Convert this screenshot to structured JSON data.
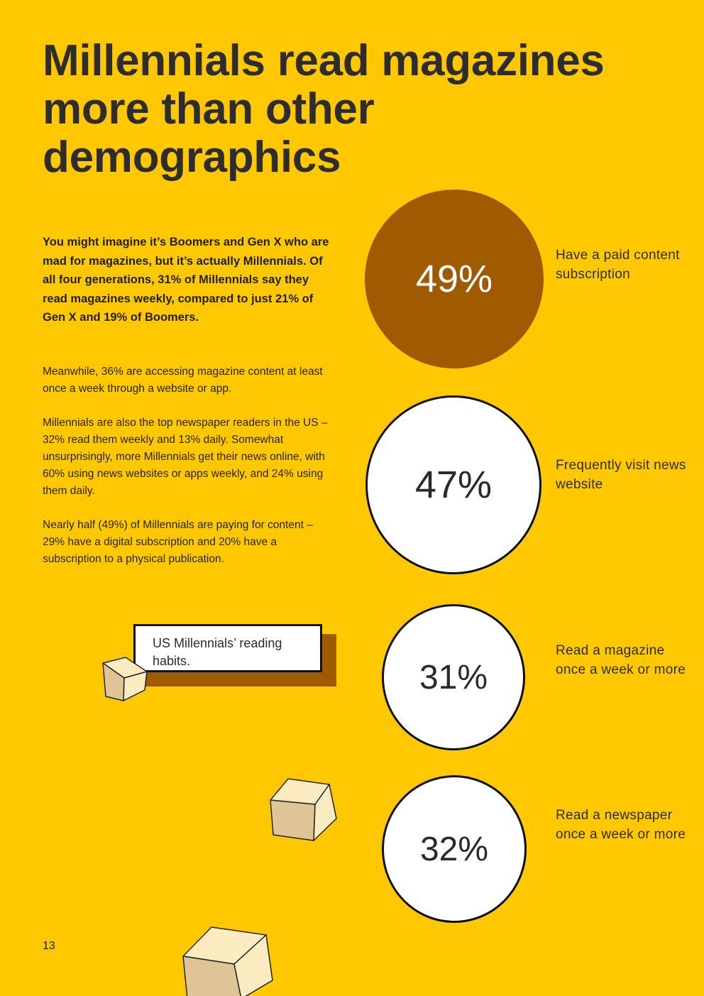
{
  "page": {
    "title": "Millennials read magazines more than other demographics",
    "intro": "You might imagine it’s Boomers and Gen X who are mad for magazines, but it’s actually Millennials. Of all four generations, 31% of Millennials say they read magazines weekly, compared to just 21% of Gen X and 19% of Boomers.",
    "paragraphs": [
      "Meanwhile, 36% are accessing magazine content at least once a week through a website or app.",
      "Millennials are also the top newspaper readers in the US – 32% read them weekly and 13% daily. Somewhat unsurprisingly, more Millennials get their news online, with 60% using news websites or apps weekly, and 24% using them daily.",
      "Nearly half (49%) of Millennials are paying for content – 29% have a digital subscription and 20% have a subscription to a physical publication."
    ],
    "callout": "US Millennials’ reading habits.",
    "page_number": "13"
  },
  "stats": [
    {
      "value": "49%",
      "label": "Have a paid content subscription",
      "fill": "#A05A00"
    },
    {
      "value": "47%",
      "label": "Frequently visit news website",
      "fill": "#FFFFFF"
    },
    {
      "value": "31%",
      "label": "Read a magazine once a week or more",
      "fill": "#FFFFFF"
    },
    {
      "value": "32%",
      "label": "Read a newspaper once a week or more",
      "fill": "#FFFFFF"
    }
  ],
  "colors": {
    "background": "#FFC800",
    "accent_brown": "#A05A00",
    "text_dark": "#2B2B2B",
    "cube_light": "#FBEBC0",
    "cube_dark": "#DFC595"
  },
  "decorations": [
    "cube-icon",
    "cube-icon",
    "cube-icon"
  ]
}
